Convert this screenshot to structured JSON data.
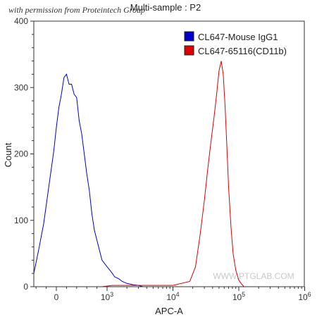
{
  "permission_note": "with permission from Proteintech Group",
  "chart_data": {
    "type": "line",
    "title": "Multi-sample : P2",
    "xlabel": "APC-A",
    "ylabel": "Count",
    "x_scale": "biexponential",
    "ylim": [
      0,
      400
    ],
    "y_ticks": [
      0,
      100,
      200,
      300,
      400
    ],
    "x_ticks": [
      {
        "value": 0,
        "label": "0"
      },
      {
        "value": 1000,
        "label": "10",
        "exp": "3"
      },
      {
        "value": 10000,
        "label": "10",
        "exp": "4"
      },
      {
        "value": 100000,
        "label": "10",
        "exp": "5"
      },
      {
        "value": 1000000,
        "label": "10",
        "exp": "6"
      }
    ],
    "legend_position": "top-right",
    "series": [
      {
        "name": "CL647-Mouse IgG1",
        "color": "#0000cc",
        "x": [
          -900,
          -700,
          -500,
          -350,
          -250,
          -150,
          -50,
          0,
          50,
          100,
          150,
          200,
          250,
          300,
          350,
          400,
          450,
          500,
          550,
          600,
          650,
          700,
          750,
          800,
          850,
          900,
          1000,
          1100,
          1200,
          1300,
          1500,
          1700,
          2000,
          2500,
          3000,
          3500
        ],
        "y": [
          0,
          8,
          20,
          55,
          95,
          150,
          205,
          240,
          270,
          290,
          315,
          320,
          305,
          305,
          290,
          285,
          250,
          230,
          200,
          170,
          145,
          110,
          85,
          70,
          55,
          40,
          30,
          25,
          20,
          15,
          12,
          8,
          5,
          3,
          2,
          0
        ]
      },
      {
        "name": "CL647-65116(CD11b)",
        "color": "#dd0000",
        "x": [
          900,
          1200,
          2000,
          4000,
          10000,
          18000,
          22000,
          26000,
          30000,
          34000,
          38000,
          42000,
          46000,
          50000,
          54000,
          58000,
          62000,
          66000,
          70000,
          76000,
          82000,
          90000,
          100000,
          110000,
          120000
        ],
        "y": [
          0,
          2,
          2,
          2,
          2,
          8,
          30,
          80,
          130,
          180,
          220,
          255,
          290,
          325,
          340,
          320,
          270,
          210,
          150,
          90,
          50,
          25,
          10,
          4,
          0
        ]
      }
    ]
  }
}
